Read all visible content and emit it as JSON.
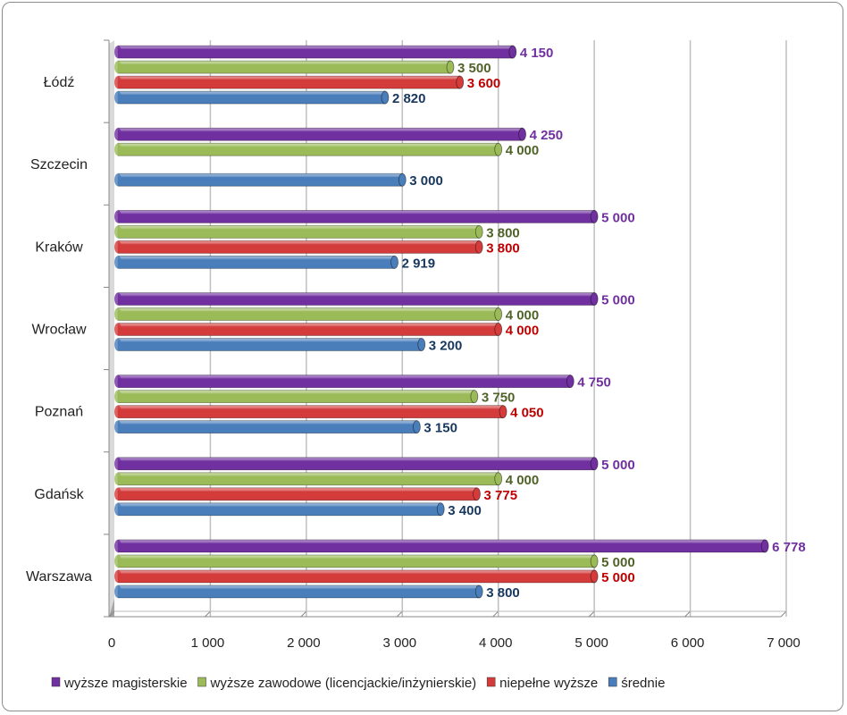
{
  "chart_data": {
    "type": "bar",
    "orientation": "horizontal",
    "style": "3d-cylinder",
    "categories": [
      "Łódź",
      "Szczecin",
      "Kraków",
      "Wrocław",
      "Poznań",
      "Gdańsk",
      "Warszawa"
    ],
    "series": [
      {
        "name": "wyższe magisterskie",
        "color": "#7030a0",
        "label_color": "#7030a0",
        "values": [
          4150,
          4250,
          5000,
          5000,
          4750,
          5000,
          6778
        ],
        "labels": [
          "4 150",
          "4 250",
          "5 000",
          "5 000",
          "4 750",
          "5 000",
          "6 778"
        ]
      },
      {
        "name": "wyższe zawodowe (licencjackie/inżynierskie)",
        "color": "#9bbb59",
        "label_color": "#4f6228",
        "values": [
          3500,
          4000,
          3800,
          4000,
          3750,
          4000,
          5000
        ],
        "labels": [
          "3 500",
          "4 000",
          "3 800",
          "4 000",
          "3 750",
          "4 000",
          "5 000"
        ]
      },
      {
        "name": "niepełne wyższe",
        "color": "#d43b3b",
        "label_color": "#c00000",
        "values": [
          3600,
          null,
          3800,
          4000,
          4050,
          3775,
          5000
        ],
        "labels": [
          "3 600",
          "",
          "3 800",
          "4 000",
          "4 050",
          "3 775",
          "5 000"
        ]
      },
      {
        "name": "średnie",
        "color": "#4a7ebb",
        "label_color": "#17375e",
        "values": [
          2820,
          3000,
          2919,
          3200,
          3150,
          3400,
          3800
        ],
        "labels": [
          "2 820",
          "3 000",
          "2 919",
          "3 200",
          "3 150",
          "3 400",
          "3 800"
        ]
      }
    ],
    "xlim": [
      0,
      7000
    ],
    "xticks": [
      0,
      1000,
      2000,
      3000,
      4000,
      5000,
      6000,
      7000
    ],
    "xtick_labels": [
      "0",
      "1 000",
      "2 000",
      "3 000",
      "4 000",
      "5 000",
      "6 000",
      "7 000"
    ],
    "grid": "vertical",
    "legend_position": "bottom"
  }
}
